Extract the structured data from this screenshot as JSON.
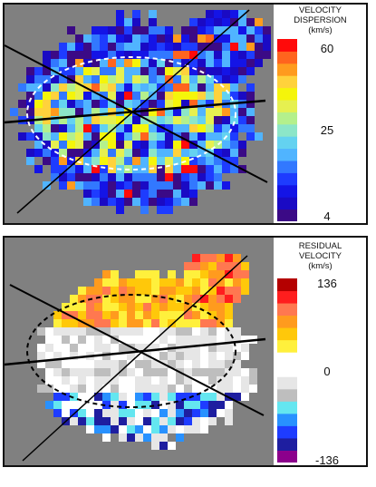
{
  "top_panel": {
    "colorbar_title_lines": [
      "VELOCITY",
      "DISPERSION",
      "(km/s)"
    ],
    "ticks": [
      "60",
      "25",
      "4"
    ],
    "colors": [
      "#3b0a86",
      "#1a0ac4",
      "#1414e6",
      "#1e3cff",
      "#3278ff",
      "#50b4ff",
      "#64d2f0",
      "#8ce6c8",
      "#b4f08c",
      "#e6f050",
      "#f5f50a",
      "#ffd23c",
      "#ff9b1e",
      "#ff641e",
      "#ff0a0a"
    ]
  },
  "bottom_panel": {
    "colorbar_title_lines": [
      "RESIDUAL",
      "VELOCITY",
      "(km/s)"
    ],
    "ticks": [
      "136",
      "0",
      "-136"
    ],
    "colors": [
      "#8c008c",
      "#1e1ea0",
      "#1e3cff",
      "#2891ff",
      "#64e6f0",
      "#bebebe",
      "#e6e6e6",
      "#ffffff",
      "#ffffff",
      "#fff03c",
      "#ffc80a",
      "#ff9b1e",
      "#ff7850",
      "#ff1e1e",
      "#b40000"
    ]
  },
  "map_background": "#808080"
}
